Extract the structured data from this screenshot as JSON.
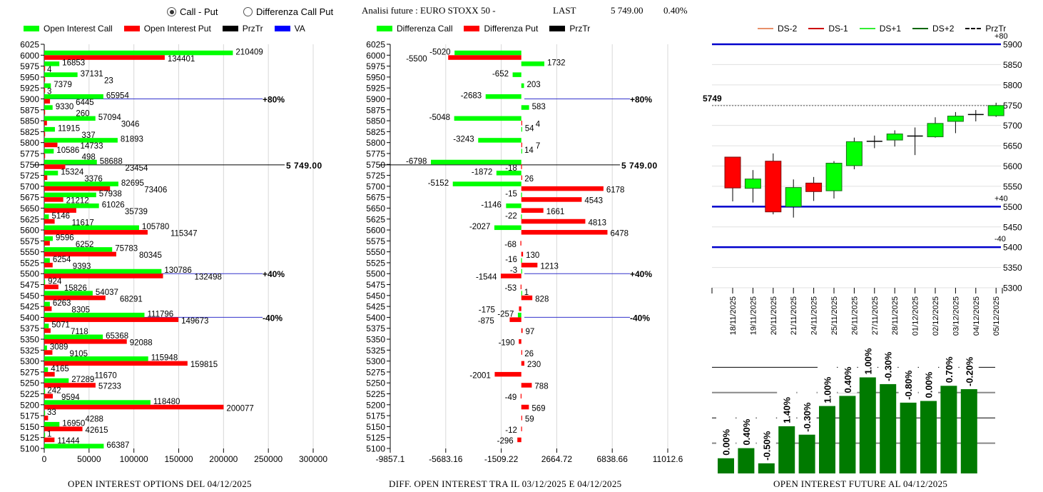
{
  "controls": {
    "radio_options": [
      {
        "label": "Call - Put",
        "selected": true
      },
      {
        "label": "Differenza Call Put",
        "selected": false
      }
    ]
  },
  "header": {
    "title": "Analisi future : EURO STOXX 50 -",
    "last_label": "LAST",
    "last_value": "5 749.00",
    "change": "0.40%"
  },
  "colors": {
    "call": "#00ff00",
    "put": "#ff0000",
    "przTr": "#000000",
    "va": "#0000ff",
    "ds_minus2": "#e8906a",
    "ds_minus1": "#cc0000",
    "ds_plus1": "#33ee33",
    "ds_plus2": "#006600",
    "oi_bar": "#007a00"
  },
  "chart_data": [
    {
      "type": "bar",
      "orientation": "horizontal",
      "title": "OPEN INTEREST OPTIONS DEL 04/12/2025",
      "legend": [
        "Open Interest Call",
        "Open Interest Put",
        "PrzTr",
        "VA"
      ],
      "legend_position": "top",
      "xlim": [
        0,
        300000
      ],
      "xticks": [
        "0",
        "50000",
        "100000",
        "150000",
        "200000",
        "250000",
        "300000"
      ],
      "grid": true,
      "categories": [
        "6025",
        "6000",
        "5975",
        "5950",
        "5925",
        "5900",
        "5875",
        "5850",
        "5825",
        "5800",
        "5775",
        "5750",
        "5725",
        "5700",
        "5675",
        "5650",
        "5625",
        "5600",
        "5575",
        "5550",
        "5525",
        "5500",
        "5475",
        "5450",
        "5425",
        "5400",
        "5375",
        "5350",
        "5325",
        "5300",
        "5275",
        "5250",
        "5225",
        "5200",
        "5175",
        "5150",
        "5125",
        "5100"
      ],
      "series": [
        {
          "name": "Open Interest Call",
          "values": [
            null,
            210409,
            16853,
            37131,
            7379,
            65954,
            9330,
            57094,
            11915,
            81893,
            10586,
            58688,
            15324,
            82695,
            57938,
            61026,
            5146,
            105780,
            9596,
            75783,
            6254,
            130786,
            924,
            54037,
            6263,
            111796,
            5071,
            65368,
            3089,
            115948,
            4165,
            27289,
            242,
            118480,
            33,
            16950,
            1,
            66387
          ]
        },
        {
          "name": "Open Interest Put",
          "values": [
            null,
            134401,
            4,
            23,
            3,
            6445,
            260,
            3046,
            337,
            14733,
            498,
            23454,
            3376,
            73406,
            21212,
            35739,
            11617,
            115347,
            6252,
            80345,
            9393,
            132498,
            15826,
            68291,
            8305,
            149673,
            7118,
            92088,
            9105,
            159815,
            11670,
            57233,
            9594,
            200077,
            4288,
            42615,
            11444,
            null
          ]
        }
      ],
      "reference_lines": [
        {
          "strike": "5900",
          "label": "+80%",
          "type": "VA"
        },
        {
          "strike": "5749",
          "label": "5 749.00",
          "type": "PrzTr"
        },
        {
          "strike": "5500",
          "label": "+40%",
          "type": "VA"
        },
        {
          "strike": "5400",
          "label": "-40%",
          "type": "VA"
        }
      ]
    },
    {
      "type": "bar",
      "orientation": "horizontal",
      "title": "DIFF. OPEN INTEREST TRA IL 03/12/2025 E 04/12/2025",
      "legend": [
        "Differenza Call",
        "Differenza Put",
        "PrzTr"
      ],
      "legend_position": "top",
      "xlim": [
        -9857.1,
        11012.6
      ],
      "xticks": [
        "-9857.1",
        "-5683.16",
        "-1509.22",
        "2664.72",
        "6838.66",
        "11012.6"
      ],
      "grid": true,
      "categories": [
        "6025",
        "6000",
        "5975",
        "5950",
        "5925",
        "5900",
        "5875",
        "5850",
        "5825",
        "5800",
        "5775",
        "5750",
        "5725",
        "5700",
        "5675",
        "5650",
        "5625",
        "5600",
        "5575",
        "5550",
        "5525",
        "5500",
        "5475",
        "5450",
        "5425",
        "5400",
        "5375",
        "5350",
        "5325",
        "5300",
        "5275",
        "5250",
        "5225",
        "5200",
        "5175",
        "5150",
        "5125",
        "5100"
      ],
      "series": [
        {
          "name": "Differenza Call",
          "values": [
            null,
            -5020,
            1732,
            -652,
            203,
            -2683,
            583,
            -5048,
            54,
            -3243,
            14,
            -6798,
            -1872,
            -5152,
            -15,
            -1146,
            -22,
            -2027,
            null,
            null,
            -16,
            -3,
            null,
            1,
            null,
            -257,
            null,
            null,
            null,
            null,
            null,
            null,
            null,
            null,
            null,
            null,
            null,
            null
          ]
        },
        {
          "name": "Differenza Put",
          "values": [
            null,
            -5500,
            null,
            null,
            null,
            null,
            null,
            4,
            null,
            7,
            null,
            -18,
            26,
            6178,
            4543,
            1661,
            4813,
            6478,
            -68,
            130,
            1213,
            -1544,
            -53,
            828,
            -175,
            -875,
            97,
            -190,
            26,
            230,
            -2001,
            788,
            -49,
            569,
            59,
            -12,
            -296,
            null
          ]
        }
      ],
      "reference_lines": [
        {
          "strike": "5900",
          "label": "+80%",
          "type": "VA"
        },
        {
          "strike": "5749",
          "label": "5 749.00",
          "type": "PrzTr"
        },
        {
          "strike": "5500",
          "label": "+40%",
          "type": "VA"
        },
        {
          "strike": "5400",
          "label": "-40%",
          "type": "VA"
        }
      ]
    },
    {
      "type": "candlestick",
      "title": "",
      "legend": [
        "DS-2",
        "DS-1",
        "DS+1",
        "DS+2",
        "PrzTr"
      ],
      "legend_position": "top",
      "ylim": [
        5300,
        5900
      ],
      "yticks": [
        "5300",
        "5350",
        "5400",
        "5450",
        "5500",
        "5550",
        "5600",
        "5650",
        "5700",
        "5750",
        "5800",
        "5850",
        "5900"
      ],
      "grid": true,
      "current_price_label": "5749",
      "current_price": 5749,
      "categories": [
        "18/11/2025",
        "19/11/2025",
        "20/11/2025",
        "21/11/2025",
        "24/11/2025",
        "25/11/2025",
        "26/11/2025",
        "27/11/2025",
        "28/11/2025",
        "01/12/2025",
        "02/12/2025",
        "03/12/2025",
        "04/12/2025",
        "05/12/2025"
      ],
      "ohlc": [
        {
          "open": 5622,
          "high": 5622,
          "low": 5513,
          "close": 5546
        },
        {
          "open": 5545,
          "high": 5590,
          "low": 5510,
          "close": 5568
        },
        {
          "open": 5612,
          "high": 5631,
          "low": 5481,
          "close": 5487
        },
        {
          "open": 5500,
          "high": 5567,
          "low": 5473,
          "close": 5547
        },
        {
          "open": 5558,
          "high": 5573,
          "low": 5514,
          "close": 5537
        },
        {
          "open": 5539,
          "high": 5612,
          "low": 5520,
          "close": 5607
        },
        {
          "open": 5601,
          "high": 5670,
          "low": 5592,
          "close": 5660
        },
        {
          "open": 5661,
          "high": 5675,
          "low": 5644,
          "close": 5661
        },
        {
          "open": 5664,
          "high": 5688,
          "low": 5648,
          "close": 5679
        },
        {
          "open": 5674,
          "high": 5695,
          "low": 5627,
          "close": 5674
        },
        {
          "open": 5672,
          "high": 5720,
          "low": 5670,
          "close": 5705
        },
        {
          "open": 5710,
          "high": 5733,
          "low": 5681,
          "close": 5723
        },
        {
          "open": 5727,
          "high": 5738,
          "low": 5710,
          "close": 5727
        },
        {
          "open": 5724,
          "high": 5756,
          "low": 5721,
          "close": 5749
        }
      ],
      "levels": [
        {
          "value": 5900,
          "label": "+80"
        },
        {
          "value": 5500,
          "label": "+40"
        },
        {
          "value": 5400,
          "label": "-40"
        }
      ]
    },
    {
      "type": "bar",
      "title": "OPEN INTEREST FUTURE AL 04/12/2025",
      "grid": true,
      "categories": [
        "18/11/2025",
        "19/11/2025",
        "20/11/2025",
        "21/11/2025",
        "24/11/2025",
        "25/11/2025",
        "26/11/2025",
        "27/11/2025",
        "28/11/2025",
        "01/12/2025",
        "02/12/2025",
        "03/12/2025",
        "04/12/2025"
      ],
      "values": [
        0.9,
        1.5,
        0.6,
        2.8,
        2.3,
        4.0,
        4.6,
        5.7,
        5.3,
        4.2,
        4.3,
        5.2,
        5.0
      ],
      "ylim": [
        0,
        7.5
      ],
      "labels": [
        "0.00%",
        "0.40%",
        "-0.50%",
        "1.40%",
        "-0.30%",
        "1.00%",
        "0.40%",
        "1.00%",
        "-0.30%",
        "-0.80%",
        "0.00%",
        "0.70%",
        "-0.20%"
      ]
    }
  ]
}
